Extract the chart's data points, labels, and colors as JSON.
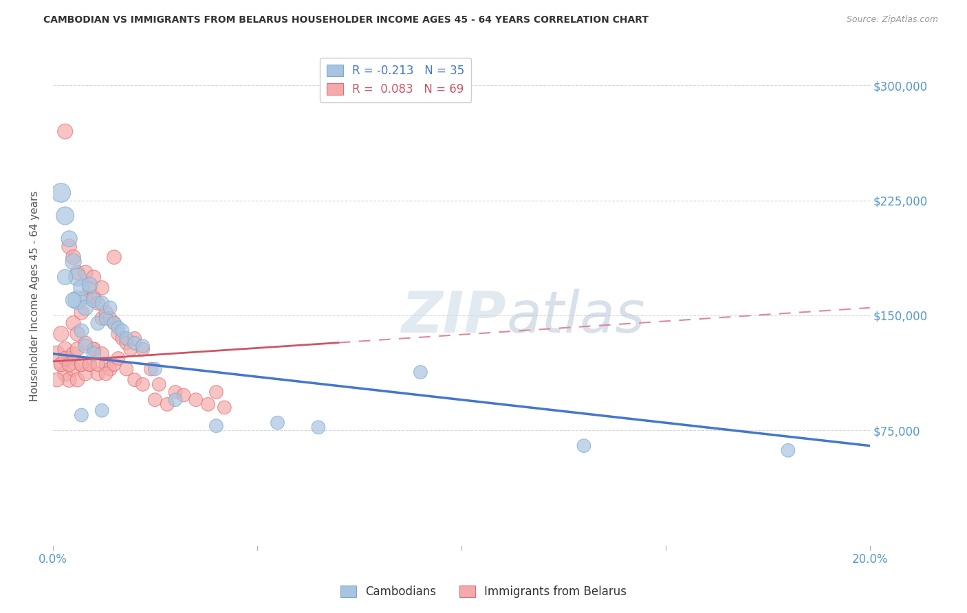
{
  "title": "CAMBODIAN VS IMMIGRANTS FROM BELARUS HOUSEHOLDER INCOME AGES 45 - 64 YEARS CORRELATION CHART",
  "source": "Source: ZipAtlas.com",
  "ylabel": "Householder Income Ages 45 - 64 years",
  "watermark_zip": "ZIP",
  "watermark_atlas": "atlas",
  "xlim": [
    0.0,
    0.2
  ],
  "ylim": [
    0,
    325000
  ],
  "yticks": [
    75000,
    150000,
    225000,
    300000
  ],
  "ytick_labels": [
    "$75,000",
    "$150,000",
    "$225,000",
    "$300,000"
  ],
  "xticks": [
    0.0,
    0.05,
    0.1,
    0.15,
    0.2
  ],
  "xtick_labels_left": "0.0%",
  "xtick_labels_right": "20.0%",
  "r1_label": "R = -0.213   N = 35",
  "r2_label": "R =  0.083   N = 69",
  "color_cambodian": "#A8C4E0",
  "color_cambodian_edge": "#7BAAD0",
  "color_belarus": "#F4AAAA",
  "color_belarus_edge": "#E07070",
  "color_trend_camb": "#4477CC",
  "color_trend_bel_solid": "#CC5566",
  "color_trend_bel_dash": "#DD8899",
  "color_axis_labels": "#5599CC",
  "color_title": "#333333",
  "gridcolor": "#CCCCCC",
  "cambodian_x": [
    0.002,
    0.003,
    0.004,
    0.005,
    0.006,
    0.006,
    0.007,
    0.008,
    0.009,
    0.01,
    0.011,
    0.012,
    0.013,
    0.014,
    0.015,
    0.016,
    0.017,
    0.018,
    0.02,
    0.022,
    0.025,
    0.03,
    0.04,
    0.055,
    0.09,
    0.13,
    0.003,
    0.005,
    0.007,
    0.008,
    0.01,
    0.012,
    0.065,
    0.18,
    0.007
  ],
  "cambodian_y": [
    230000,
    215000,
    200000,
    185000,
    175000,
    160000,
    168000,
    155000,
    170000,
    160000,
    145000,
    158000,
    148000,
    155000,
    145000,
    142000,
    140000,
    135000,
    132000,
    130000,
    115000,
    95000,
    78000,
    80000,
    113000,
    65000,
    175000,
    160000,
    140000,
    130000,
    125000,
    88000,
    77000,
    62000,
    85000
  ],
  "cambodian_sizes": [
    400,
    350,
    280,
    280,
    350,
    380,
    280,
    260,
    260,
    240,
    220,
    220,
    200,
    200,
    200,
    200,
    200,
    200,
    200,
    200,
    200,
    200,
    200,
    200,
    200,
    200,
    260,
    260,
    220,
    220,
    220,
    200,
    200,
    200,
    200
  ],
  "belarus_x": [
    0.001,
    0.002,
    0.002,
    0.003,
    0.003,
    0.004,
    0.004,
    0.005,
    0.005,
    0.006,
    0.006,
    0.007,
    0.007,
    0.008,
    0.008,
    0.009,
    0.009,
    0.01,
    0.01,
    0.011,
    0.011,
    0.012,
    0.013,
    0.013,
    0.014,
    0.014,
    0.015,
    0.016,
    0.017,
    0.018,
    0.019,
    0.02,
    0.022,
    0.024,
    0.026,
    0.03,
    0.032,
    0.035,
    0.038,
    0.042,
    0.001,
    0.002,
    0.003,
    0.004,
    0.005,
    0.006,
    0.007,
    0.008,
    0.009,
    0.01,
    0.011,
    0.012,
    0.013,
    0.015,
    0.016,
    0.018,
    0.02,
    0.022,
    0.025,
    0.028,
    0.003,
    0.004,
    0.005,
    0.006,
    0.008,
    0.01,
    0.012,
    0.015,
    0.04
  ],
  "belarus_y": [
    125000,
    138000,
    118000,
    128000,
    112000,
    122000,
    108000,
    145000,
    115000,
    138000,
    108000,
    152000,
    118000,
    162000,
    112000,
    168000,
    118000,
    162000,
    128000,
    158000,
    112000,
    148000,
    152000,
    118000,
    148000,
    115000,
    145000,
    138000,
    135000,
    132000,
    128000,
    135000,
    128000,
    115000,
    105000,
    100000,
    98000,
    95000,
    92000,
    90000,
    108000,
    118000,
    122000,
    118000,
    125000,
    128000,
    118000,
    132000,
    118000,
    128000,
    118000,
    125000,
    112000,
    118000,
    122000,
    115000,
    108000,
    105000,
    95000,
    92000,
    270000,
    195000,
    188000,
    178000,
    178000,
    175000,
    168000,
    188000,
    100000
  ],
  "belarus_sizes": [
    280,
    250,
    230,
    240,
    250,
    230,
    240,
    230,
    220,
    230,
    220,
    230,
    220,
    220,
    210,
    220,
    210,
    210,
    210,
    210,
    210,
    210,
    210,
    210,
    210,
    210,
    210,
    210,
    200,
    200,
    200,
    200,
    200,
    200,
    200,
    200,
    200,
    200,
    200,
    200,
    220,
    220,
    220,
    220,
    220,
    220,
    210,
    210,
    210,
    210,
    210,
    210,
    200,
    200,
    200,
    200,
    200,
    200,
    200,
    200,
    250,
    240,
    240,
    230,
    230,
    220,
    220,
    220,
    200
  ]
}
